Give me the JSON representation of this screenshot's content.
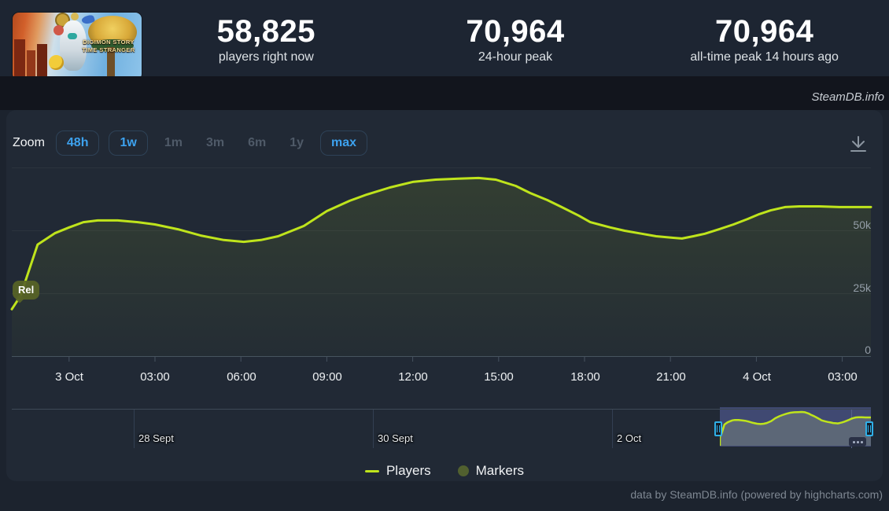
{
  "header": {
    "capsule": {
      "title_line1": "DIGIMON STORY",
      "title_line2": "TIME STRANGER"
    },
    "stats": [
      {
        "value": "58,825",
        "label": "players right now"
      },
      {
        "value": "70,964",
        "label": "24-hour peak"
      },
      {
        "value": "70,964",
        "label": "all-time peak 14 hours ago"
      }
    ]
  },
  "watermark": "SteamDB.info",
  "toolbar": {
    "zoom_label": "Zoom",
    "buttons": [
      {
        "label": "48h",
        "state": "active"
      },
      {
        "label": "1w",
        "state": "active"
      },
      {
        "label": "1m",
        "state": "disabled"
      },
      {
        "label": "3m",
        "state": "disabled"
      },
      {
        "label": "6m",
        "state": "disabled"
      },
      {
        "label": "1y",
        "state": "disabled"
      },
      {
        "label": "max",
        "state": "active"
      }
    ]
  },
  "chart_data": {
    "type": "line",
    "title": "",
    "grid": "horizontal",
    "legend_position": "bottom-center",
    "x_axis": {
      "start": "2 Oct 22:00",
      "end": "4 Oct 04:00",
      "ticks": [
        {
          "label": "3 Oct",
          "t": 2
        },
        {
          "label": "03:00",
          "t": 5
        },
        {
          "label": "06:00",
          "t": 8
        },
        {
          "label": "09:00",
          "t": 11
        },
        {
          "label": "12:00",
          "t": 14
        },
        {
          "label": "15:00",
          "t": 17
        },
        {
          "label": "18:00",
          "t": 20
        },
        {
          "label": "21:00",
          "t": 23
        },
        {
          "label": "4 Oct",
          "t": 26
        },
        {
          "label": "03:00",
          "t": 29
        }
      ]
    },
    "y_axis": {
      "ticks": [
        {
          "label": "50k",
          "value": 50000
        },
        {
          "label": "25k",
          "value": 25000
        },
        {
          "label": "0",
          "value": 0
        }
      ],
      "unlabeled_gridline_value": 75000,
      "range": [
        0,
        75000
      ]
    },
    "series": [
      {
        "name": "Players",
        "color": "#bfe41c",
        "points_t_hours_vs_players": [
          [
            0,
            18800
          ],
          [
            0.3,
            24000
          ],
          [
            0.9,
            44500
          ],
          [
            1.5,
            49000
          ],
          [
            2,
            51300
          ],
          [
            2.5,
            53400
          ],
          [
            3,
            54100
          ],
          [
            3.7,
            54100
          ],
          [
            4.4,
            53400
          ],
          [
            5,
            52500
          ],
          [
            5.8,
            50600
          ],
          [
            6.6,
            48100
          ],
          [
            7.4,
            46300
          ],
          [
            8.1,
            45600
          ],
          [
            8.7,
            46300
          ],
          [
            9.3,
            47800
          ],
          [
            10.2,
            51900
          ],
          [
            11,
            57800
          ],
          [
            11.8,
            61900
          ],
          [
            12.4,
            64400
          ],
          [
            13.2,
            67200
          ],
          [
            14,
            69400
          ],
          [
            14.8,
            70300
          ],
          [
            15.6,
            70700
          ],
          [
            16.3,
            70964
          ],
          [
            16.9,
            70300
          ],
          [
            17.6,
            67800
          ],
          [
            18.1,
            65000
          ],
          [
            18.7,
            62200
          ],
          [
            19.2,
            59400
          ],
          [
            19.8,
            56000
          ],
          [
            20.2,
            53400
          ],
          [
            20.9,
            51300
          ],
          [
            21.4,
            50000
          ],
          [
            22,
            48800
          ],
          [
            22.5,
            47800
          ],
          [
            23.1,
            47200
          ],
          [
            23.4,
            46900
          ],
          [
            23.8,
            47800
          ],
          [
            24.2,
            48800
          ],
          [
            24.7,
            50600
          ],
          [
            25.2,
            52500
          ],
          [
            25.7,
            54700
          ],
          [
            26.1,
            56600
          ],
          [
            26.5,
            58100
          ],
          [
            27,
            59400
          ],
          [
            27.5,
            59700
          ],
          [
            28.2,
            59700
          ],
          [
            28.9,
            59400
          ],
          [
            30,
            59400
          ]
        ]
      }
    ],
    "marker": {
      "label": "Rel",
      "t": 0.6
    },
    "legend": [
      {
        "label": "Players",
        "swatch": "line",
        "color": "#bfe41c"
      },
      {
        "label": "Markers",
        "swatch": "circle",
        "color": "#51602f"
      }
    ],
    "navigator": {
      "labels": [
        {
          "label": "28 Sept"
        },
        {
          "label": "30 Sept"
        },
        {
          "label": "2 Oct"
        }
      ],
      "selection_t_range": [
        0,
        30
      ]
    }
  },
  "footer": {
    "credit": "data by SteamDB.info (powered by highcharts.com)"
  }
}
